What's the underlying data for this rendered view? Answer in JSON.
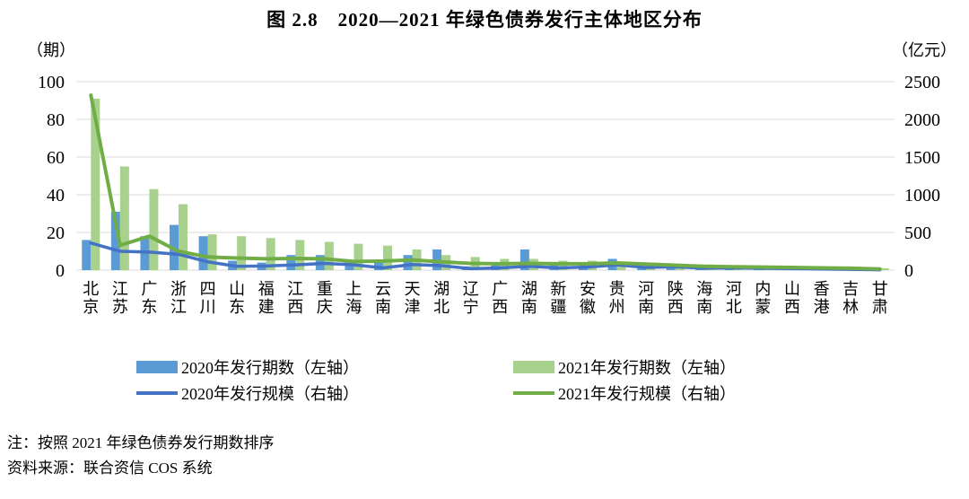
{
  "title": "图 2.8　2020—2021 年绿色债券发行主体地区分布",
  "chart_data": {
    "type": "bar",
    "subtype": "grouped-bar-with-lines-combo",
    "title": "图 2.8　2020—2021 年绿色债券发行主体地区分布",
    "grid": "horizontal-only",
    "legend_position": "bottom",
    "left_axis": {
      "unit_label": "（期）",
      "ticks": [
        0,
        20,
        40,
        60,
        80,
        100
      ],
      "range": [
        0,
        100
      ]
    },
    "right_axis": {
      "unit_label": "（亿元）",
      "ticks": [
        0,
        500,
        1000,
        1500,
        2000,
        2500
      ],
      "range": [
        0,
        2500
      ]
    },
    "categories": [
      "北京",
      "江苏",
      "广东",
      "浙江",
      "四川",
      "山东",
      "福建",
      "江西",
      "重庆",
      "上海",
      "云南",
      "天津",
      "湖北",
      "辽宁",
      "广西",
      "湖南",
      "新疆",
      "安徽",
      "贵州",
      "河南",
      "陕西",
      "海南",
      "河北",
      "内蒙",
      "山西",
      "香港",
      "吉林",
      "甘肃"
    ],
    "series": [
      {
        "name": "2020年发行期数（左轴）",
        "type": "bar",
        "axis": "left",
        "color": "#5B9BD5",
        "values": [
          16,
          31,
          18,
          24,
          18,
          5,
          4,
          8,
          8,
          5,
          4,
          8,
          11,
          2,
          3,
          11,
          3,
          3,
          6,
          1,
          2,
          1,
          1,
          1,
          1,
          0,
          1,
          0
        ]
      },
      {
        "name": "2021年发行期数（左轴）",
        "type": "bar",
        "axis": "left",
        "color": "#A9D18E",
        "values": [
          91,
          55,
          43,
          35,
          19,
          18,
          17,
          16,
          15,
          14,
          13,
          11,
          8,
          7,
          6,
          6,
          5,
          5,
          4,
          4,
          3,
          3,
          2,
          2,
          2,
          2,
          1,
          1
        ]
      },
      {
        "name": "2020年发行规模（右轴）",
        "type": "line",
        "axis": "right",
        "color": "#4472C4",
        "values": [
          360,
          250,
          240,
          210,
          110,
          50,
          55,
          70,
          90,
          70,
          30,
          75,
          60,
          20,
          30,
          50,
          30,
          40,
          70,
          35,
          45,
          25,
          30,
          25,
          20,
          15,
          10,
          5
        ]
      },
      {
        "name": "2021年发行规模（右轴）",
        "type": "line",
        "axis": "right",
        "color": "#70AD47",
        "values": [
          2320,
          330,
          450,
          250,
          175,
          160,
          150,
          155,
          150,
          115,
          120,
          135,
          110,
          90,
          85,
          90,
          85,
          85,
          95,
          80,
          65,
          50,
          45,
          40,
          35,
          30,
          25,
          15
        ]
      }
    ],
    "gridline_color": "#D9D9D9"
  },
  "notes": {
    "note": "注：按照 2021 年绿色债券发行期数排序",
    "source": "资料来源：联合资信 COS 系统"
  }
}
